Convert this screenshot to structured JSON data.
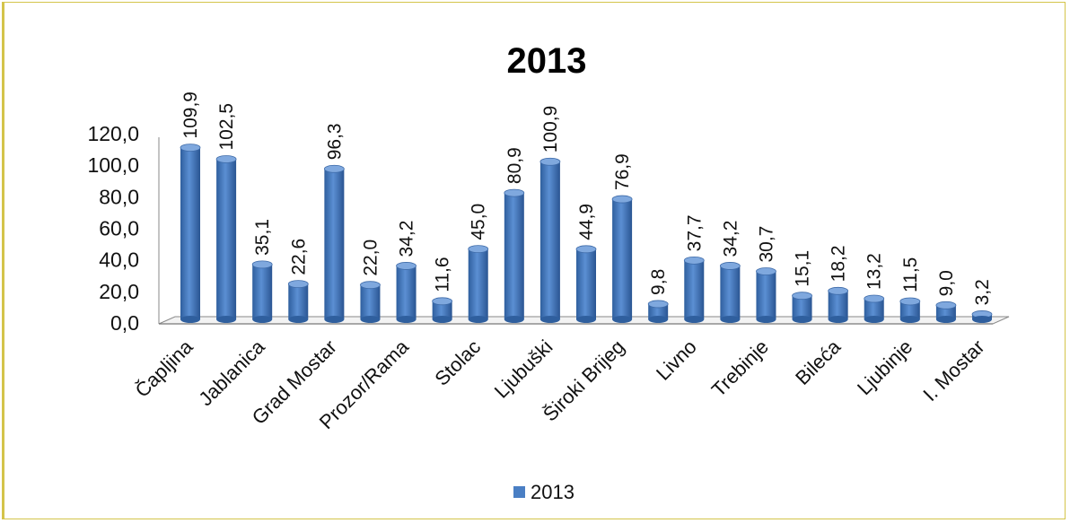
{
  "chart_data": {
    "type": "bar",
    "title": "2013",
    "xlabel": "",
    "ylabel": "",
    "ylim": [
      0,
      120
    ],
    "yticks": [
      "0,0",
      "20,0",
      "40,0",
      "60,0",
      "80,0",
      "100,0",
      "120,0"
    ],
    "categories": [
      "Čapljina",
      "",
      "Jablanica",
      "",
      "Grad Mostar",
      "",
      "Prozor/Rama",
      "",
      "Stolac",
      "",
      "Ljubuški",
      "",
      "Široki Brijeg",
      "",
      "Livno",
      "",
      "Trebinje",
      "",
      "Bileća",
      "",
      "Ljubinje",
      "",
      "I. Mostar"
    ],
    "series": [
      {
        "name": "2013",
        "values": [
          109.9,
          102.5,
          35.1,
          22.6,
          96.3,
          22.0,
          34.2,
          11.6,
          45.0,
          80.9,
          100.9,
          44.9,
          76.9,
          9.8,
          37.7,
          34.2,
          30.7,
          15.1,
          18.2,
          13.2,
          11.5,
          9.0,
          3.2
        ],
        "labels": [
          "109,9",
          "102,5",
          "35,1",
          "22,6",
          "96,3",
          "22,0",
          "34,2",
          "11,6",
          "45,0",
          "80,9",
          "100,9",
          "44,9",
          "76,9",
          "9,8",
          "37,7",
          "34,2",
          "30,7",
          "15,1",
          "18,2",
          "13,2",
          "11,5",
          "9,0",
          "3,2"
        ]
      }
    ],
    "grid": false,
    "legend": "bottom",
    "colors": {
      "bar": "#4a7fc4",
      "bar_dark": "#2e5a96",
      "bar_light": "#7ba6dc"
    }
  }
}
